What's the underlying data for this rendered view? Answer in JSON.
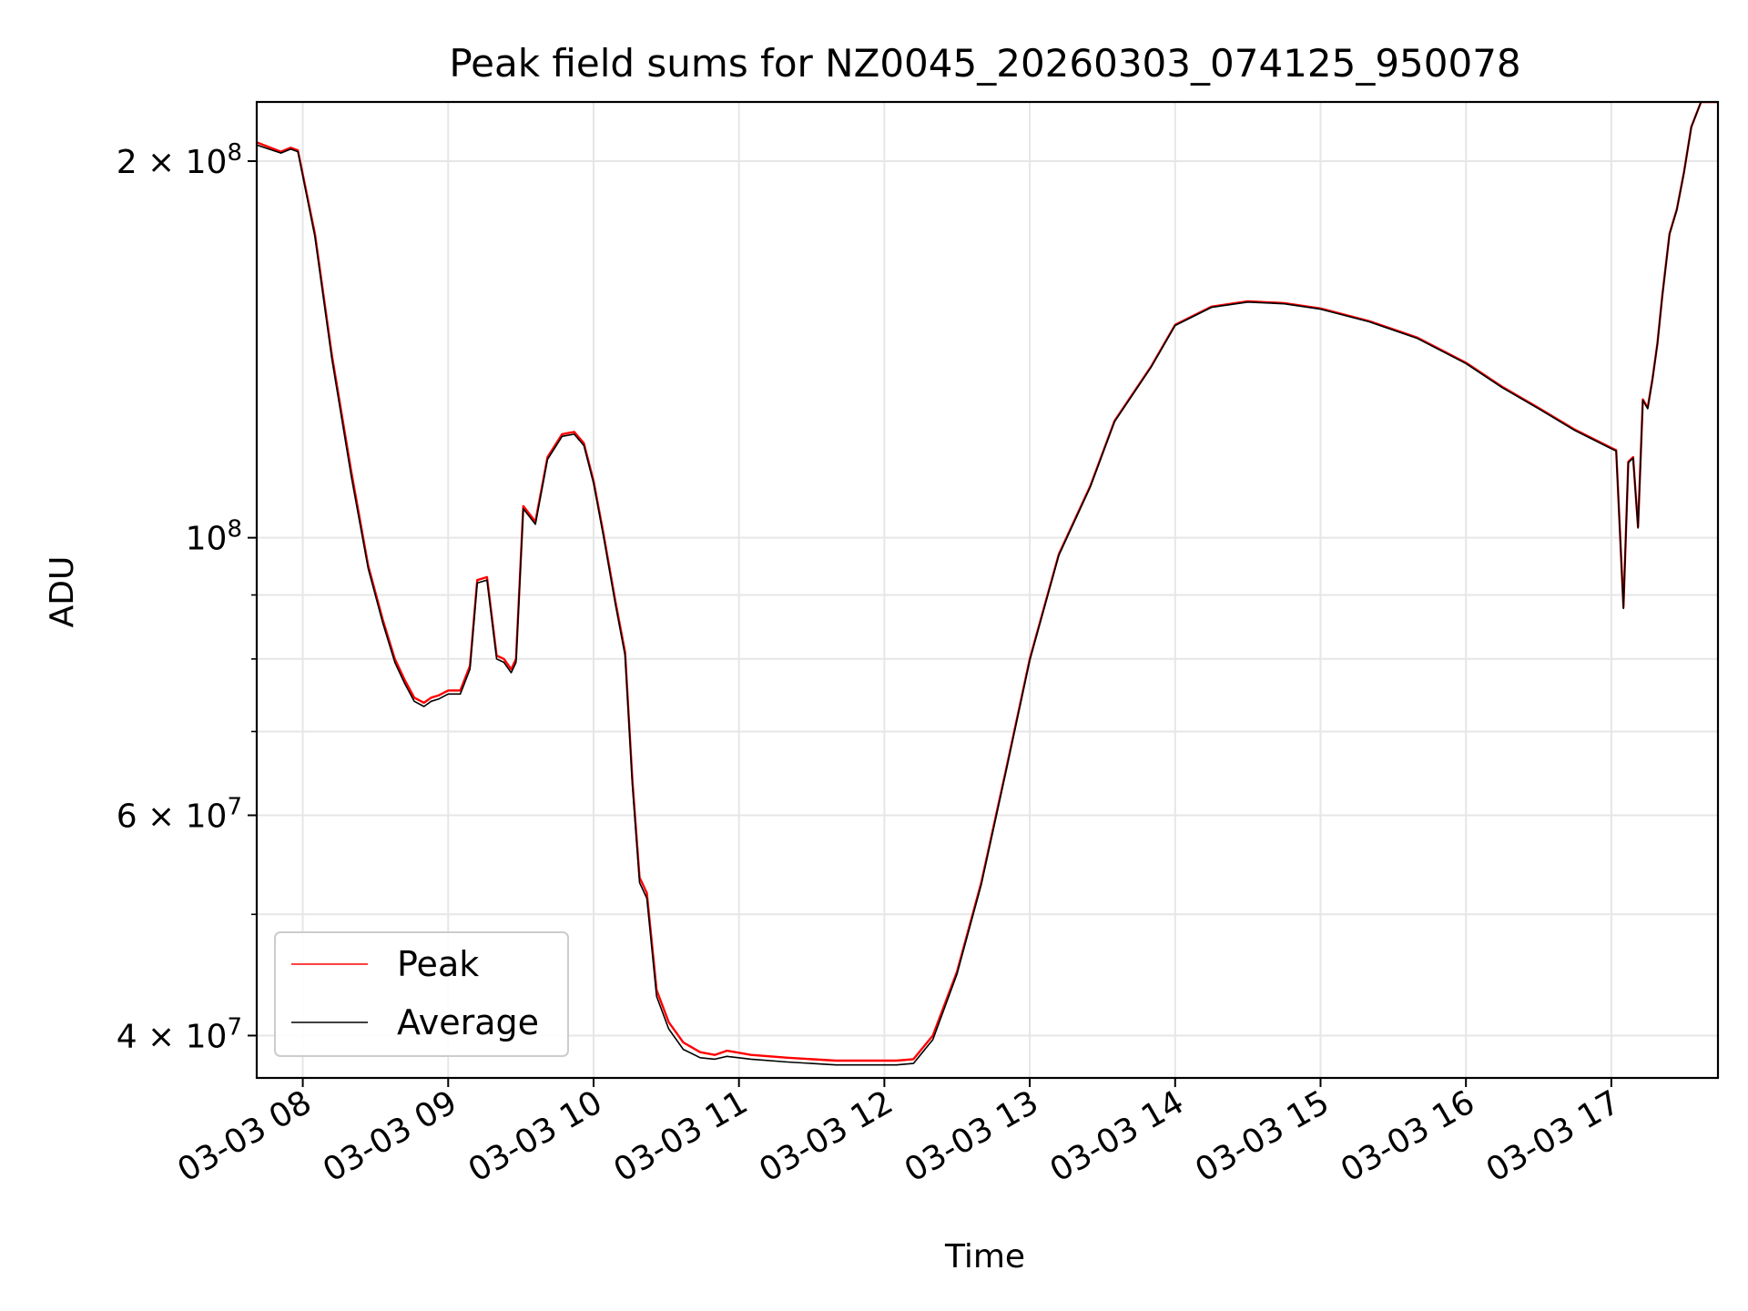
{
  "chart_data": {
    "type": "line",
    "title": "Peak field sums for NZ0045_20260303_074125_950078",
    "xlabel": "Time",
    "ylabel": "ADU",
    "y_scale": "log",
    "xlim": [
      "2026-03-03 07:41",
      "2026-03-03 17:44"
    ],
    "ylim": [
      37000000,
      223000000
    ],
    "grid": true,
    "legend_position": "lower-left",
    "x_tick_labels": [
      "03-03 08",
      "03-03 09",
      "03-03 10",
      "03-03 11",
      "03-03 12",
      "03-03 13",
      "03-03 14",
      "03-03 15",
      "03-03 16",
      "03-03 17"
    ],
    "x_ticks": [
      "2026-03-03 08:00",
      "2026-03-03 09:00",
      "2026-03-03 10:00",
      "2026-03-03 11:00",
      "2026-03-03 12:00",
      "2026-03-03 13:00",
      "2026-03-03 14:00",
      "2026-03-03 15:00",
      "2026-03-03 16:00",
      "2026-03-03 17:00"
    ],
    "y_major_ticks": [
      {
        "value": 40000000,
        "label": "4 × 10⁷",
        "mantissa": "4",
        "exp": "7"
      },
      {
        "value": 60000000,
        "label": "6 × 10⁷",
        "mantissa": "6",
        "exp": "7"
      },
      {
        "value": 100000000,
        "label": "10⁸",
        "mantissa": "",
        "exp": "8"
      },
      {
        "value": 200000000,
        "label": "2 × 10⁸",
        "mantissa": "2",
        "exp": "8"
      }
    ],
    "y_minor_ticks": [
      50000000,
      70000000,
      80000000,
      90000000
    ],
    "series": [
      {
        "name": "Peak",
        "color": "#ff0000",
        "x": [
          "2026-03-03 07:41",
          "2026-03-03 07:51",
          "2026-03-03 07:55",
          "2026-03-03 07:58",
          "2026-03-03 08:05",
          "2026-03-03 08:12",
          "2026-03-03 08:20",
          "2026-03-03 08:27",
          "2026-03-03 08:33",
          "2026-03-03 08:38",
          "2026-03-03 08:42",
          "2026-03-03 08:46",
          "2026-03-03 08:50",
          "2026-03-03 08:53",
          "2026-03-03 08:56",
          "2026-03-03 09:00",
          "2026-03-03 09:05",
          "2026-03-03 09:09",
          "2026-03-03 09:12",
          "2026-03-03 09:16",
          "2026-03-03 09:20",
          "2026-03-03 09:23",
          "2026-03-03 09:26",
          "2026-03-03 09:28",
          "2026-03-03 09:31",
          "2026-03-03 09:36",
          "2026-03-03 09:41",
          "2026-03-03 09:47",
          "2026-03-03 09:52",
          "2026-03-03 09:56",
          "2026-03-03 10:00",
          "2026-03-03 10:04",
          "2026-03-03 10:09",
          "2026-03-03 10:13",
          "2026-03-03 10:16",
          "2026-03-03 10:19",
          "2026-03-03 10:22",
          "2026-03-03 10:26",
          "2026-03-03 10:31",
          "2026-03-03 10:37",
          "2026-03-03 10:44",
          "2026-03-03 10:50",
          "2026-03-03 10:55",
          "2026-03-03 11:05",
          "2026-03-03 11:20",
          "2026-03-03 11:40",
          "2026-03-03 11:55",
          "2026-03-03 12:05",
          "2026-03-03 12:12",
          "2026-03-03 12:20",
          "2026-03-03 12:30",
          "2026-03-03 12:40",
          "2026-03-03 12:50",
          "2026-03-03 13:00",
          "2026-03-03 13:12",
          "2026-03-03 13:25",
          "2026-03-03 13:35",
          "2026-03-03 13:50",
          "2026-03-03 14:00",
          "2026-03-03 14:15",
          "2026-03-03 14:30",
          "2026-03-03 14:45",
          "2026-03-03 15:00",
          "2026-03-03 15:20",
          "2026-03-03 15:40",
          "2026-03-03 16:00",
          "2026-03-03 16:15",
          "2026-03-03 16:30",
          "2026-03-03 16:45",
          "2026-03-03 17:00",
          "2026-03-03 17:02",
          "2026-03-03 17:05",
          "2026-03-03 17:07",
          "2026-03-03 17:09",
          "2026-03-03 17:11",
          "2026-03-03 17:13",
          "2026-03-03 17:15",
          "2026-03-03 17:17",
          "2026-03-03 17:19",
          "2026-03-03 17:21",
          "2026-03-03 17:24",
          "2026-03-03 17:27",
          "2026-03-03 17:30",
          "2026-03-03 17:33",
          "2026-03-03 17:37",
          "2026-03-03 17:40",
          "2026-03-03 17:44"
        ],
        "values": [
          207000000,
          203500000,
          205000000,
          204000000,
          175000000,
          140000000,
          113000000,
          95000000,
          86000000,
          80000000,
          77000000,
          74500000,
          73800000,
          74500000,
          74800000,
          75500000,
          75500000,
          79000000,
          92500000,
          93000000,
          80500000,
          80000000,
          78500000,
          80000000,
          106000000,
          103000000,
          116000000,
          121000000,
          121500000,
          119000000,
          111000000,
          101000000,
          89000000,
          81000000,
          64000000,
          53500000,
          52000000,
          43500000,
          41000000,
          39500000,
          38800000,
          38600000,
          38900000,
          38600000,
          38400000,
          38200000,
          38200000,
          38200000,
          38300000,
          40000000,
          45000000,
          53000000,
          65000000,
          80000000,
          97000000,
          110000000,
          124000000,
          137000000,
          148000000,
          153000000,
          154500000,
          154000000,
          152500000,
          149000000,
          144500000,
          138000000,
          132000000,
          127000000,
          122000000,
          118000000,
          117500000,
          88000000,
          115000000,
          116000000,
          102000000,
          129000000,
          127000000,
          134000000,
          143000000,
          156000000,
          175000000,
          183000000,
          196000000,
          213000000,
          223000000,
          223000000,
          223000000
        ]
      },
      {
        "name": "Average",
        "color": "#000000",
        "x": [
          "2026-03-03 07:41",
          "2026-03-03 07:51",
          "2026-03-03 07:55",
          "2026-03-03 07:58",
          "2026-03-03 08:05",
          "2026-03-03 08:12",
          "2026-03-03 08:20",
          "2026-03-03 08:27",
          "2026-03-03 08:33",
          "2026-03-03 08:38",
          "2026-03-03 08:42",
          "2026-03-03 08:46",
          "2026-03-03 08:50",
          "2026-03-03 08:53",
          "2026-03-03 08:56",
          "2026-03-03 09:00",
          "2026-03-03 09:05",
          "2026-03-03 09:09",
          "2026-03-03 09:12",
          "2026-03-03 09:16",
          "2026-03-03 09:20",
          "2026-03-03 09:23",
          "2026-03-03 09:26",
          "2026-03-03 09:28",
          "2026-03-03 09:31",
          "2026-03-03 09:36",
          "2026-03-03 09:41",
          "2026-03-03 09:47",
          "2026-03-03 09:52",
          "2026-03-03 09:56",
          "2026-03-03 10:00",
          "2026-03-03 10:04",
          "2026-03-03 10:09",
          "2026-03-03 10:13",
          "2026-03-03 10:16",
          "2026-03-03 10:19",
          "2026-03-03 10:22",
          "2026-03-03 10:26",
          "2026-03-03 10:31",
          "2026-03-03 10:37",
          "2026-03-03 10:44",
          "2026-03-03 10:50",
          "2026-03-03 10:55",
          "2026-03-03 11:05",
          "2026-03-03 11:20",
          "2026-03-03 11:40",
          "2026-03-03 11:55",
          "2026-03-03 12:05",
          "2026-03-03 12:12",
          "2026-03-03 12:20",
          "2026-03-03 12:30",
          "2026-03-03 12:40",
          "2026-03-03 12:50",
          "2026-03-03 13:00",
          "2026-03-03 13:12",
          "2026-03-03 13:25",
          "2026-03-03 13:35",
          "2026-03-03 13:50",
          "2026-03-03 14:00",
          "2026-03-03 14:15",
          "2026-03-03 14:30",
          "2026-03-03 14:45",
          "2026-03-03 15:00",
          "2026-03-03 15:20",
          "2026-03-03 15:40",
          "2026-03-03 16:00",
          "2026-03-03 16:15",
          "2026-03-03 16:30",
          "2026-03-03 16:45",
          "2026-03-03 17:00",
          "2026-03-03 17:02",
          "2026-03-03 17:05",
          "2026-03-03 17:07",
          "2026-03-03 17:09",
          "2026-03-03 17:11",
          "2026-03-03 17:13",
          "2026-03-03 17:15",
          "2026-03-03 17:17",
          "2026-03-03 17:19",
          "2026-03-03 17:21",
          "2026-03-03 17:24",
          "2026-03-03 17:27",
          "2026-03-03 17:30",
          "2026-03-03 17:33",
          "2026-03-03 17:37",
          "2026-03-03 17:40",
          "2026-03-03 17:44"
        ],
        "values": [
          206000000,
          203000000,
          204500000,
          203500000,
          174000000,
          139000000,
          112000000,
          94500000,
          85500000,
          79500000,
          76500000,
          74000000,
          73300000,
          74000000,
          74300000,
          75000000,
          75000000,
          78500000,
          92000000,
          92500000,
          80000000,
          79500000,
          78000000,
          79500000,
          105500000,
          102500000,
          115500000,
          120500000,
          121000000,
          118500000,
          110500000,
          100500000,
          88500000,
          80500000,
          63500000,
          53000000,
          51500000,
          43000000,
          40500000,
          39000000,
          38400000,
          38300000,
          38500000,
          38300000,
          38100000,
          37900000,
          37900000,
          37900000,
          38000000,
          39700000,
          44800000,
          52800000,
          64800000,
          79800000,
          96800000,
          109800000,
          123800000,
          136800000,
          147800000,
          152800000,
          154300000,
          153800000,
          152300000,
          148800000,
          144300000,
          137800000,
          131800000,
          126800000,
          121800000,
          117800000,
          117300000,
          87800000,
          114800000,
          115800000,
          101800000,
          128800000,
          126800000,
          133800000,
          142800000,
          155800000,
          174800000,
          182800000,
          195800000,
          212800000,
          223000000,
          223000000,
          223000000
        ]
      }
    ]
  }
}
